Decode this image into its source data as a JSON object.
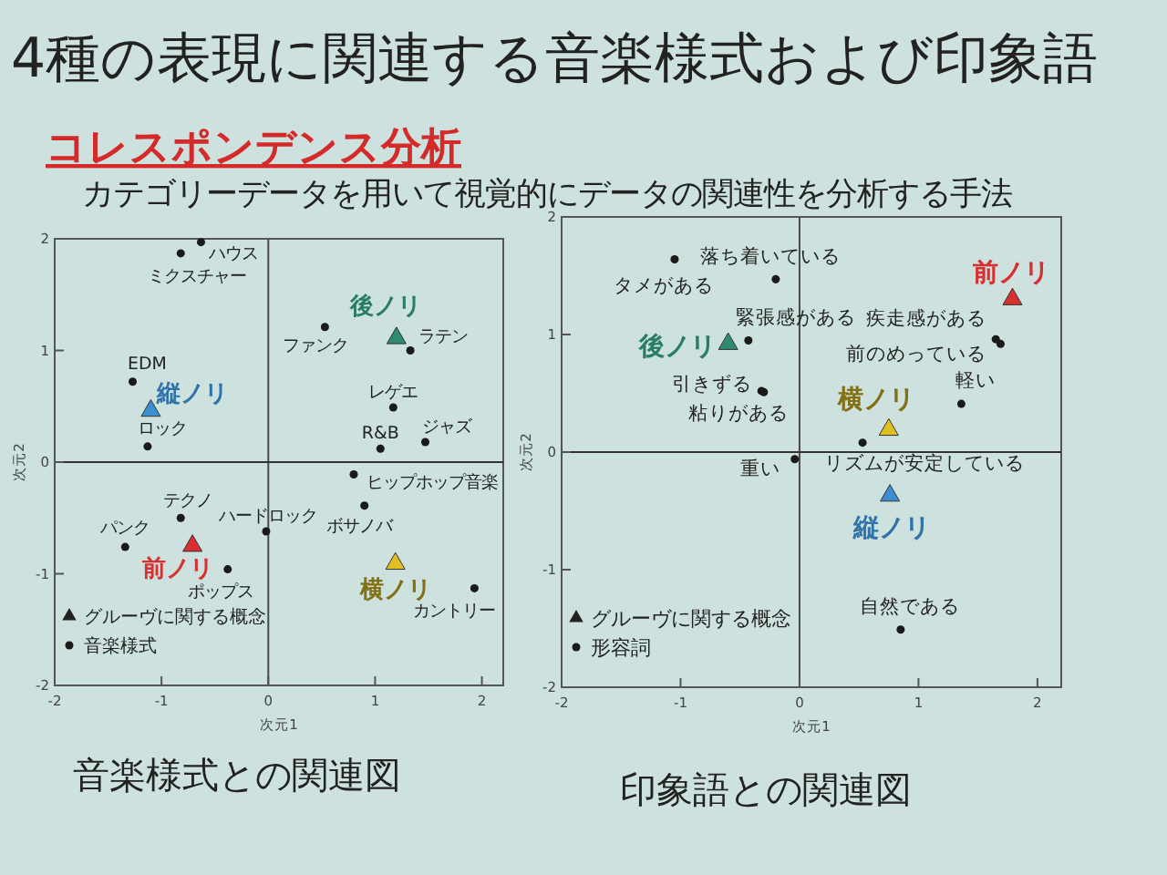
{
  "chart_data": [
    {
      "type": "scatter",
      "title": "4種の表現に関連する音楽様式および印象語",
      "subtitle": "コレスポンデンス分析",
      "xlabel": "次元1",
      "ylabel": "次元2",
      "xlim": [
        -2,
        2.2
      ],
      "ylim": [
        -2,
        2
      ],
      "xticks": [
        -2,
        -1,
        0,
        1,
        2
      ],
      "yticks": [
        -2,
        -1,
        0,
        1,
        2
      ],
      "legend": "bottom left",
      "ref_lines": [
        {
          "axis": "x",
          "value": 0
        },
        {
          "axis": "y",
          "value": 0
        }
      ],
      "series": [
        {
          "marker": "triangle",
          "colors": [
            "#2e8b6e",
            "#3b8fd0",
            "#d83030",
            "#e0c020"
          ],
          "x": [
            1.2,
            -1.1,
            -0.71,
            1.19
          ],
          "values": [
            1.11,
            0.46,
            -0.75,
            -0.91
          ]
        },
        {
          "name": "音楽様式",
          "marker": "circle",
          "color": "#1a1a1a",
          "x": [
            -0.63,
            -0.82,
            0.53,
            1.33,
            -1.27,
            -1.13,
            1.17,
            1.05,
            1.47,
            0.8,
            -0.82,
            -0.02,
            0.9,
            -1.34,
            -0.38,
            1.93
          ],
          "values": [
            1.97,
            1.87,
            1.21,
            1.0,
            0.72,
            0.14,
            0.49,
            0.12,
            0.18,
            -0.11,
            -0.5,
            -0.62,
            -0.39,
            -0.76,
            -0.96,
            -1.13
          ]
        }
      ],
      "annotations": [
        {
          "text": "後ノリ",
          "x": 1.2,
          "y": 1.11
        },
        {
          "text": "縦ノリ",
          "x": -1.1,
          "y": 0.46
        },
        {
          "text": "前ノリ",
          "x": -0.71,
          "y": -0.75
        },
        {
          "text": "横ノリ",
          "x": 1.19,
          "y": -0.91
        },
        {
          "text": "ハウス",
          "x": -0.63,
          "y": 1.97
        },
        {
          "text": "ミクスチャー",
          "x": -0.82,
          "y": 1.87
        },
        {
          "text": "ファンク",
          "x": 0.53,
          "y": 1.21
        },
        {
          "text": "ラテン",
          "x": 1.33,
          "y": 1.0
        },
        {
          "text": "EDM",
          "x": -1.27,
          "y": 0.72
        },
        {
          "text": "ロック",
          "x": -1.13,
          "y": 0.14
        },
        {
          "text": "レゲエ",
          "x": 1.17,
          "y": 0.49
        },
        {
          "text": "R&B",
          "x": 1.05,
          "y": 0.12
        },
        {
          "text": "ジャズ",
          "x": 1.47,
          "y": 0.18
        },
        {
          "text": "ヒップホップ音楽",
          "x": 0.8,
          "y": -0.11
        },
        {
          "text": "テクノ",
          "x": -0.82,
          "y": -0.5
        },
        {
          "text": "ハードロック",
          "x": -0.02,
          "y": -0.62
        },
        {
          "text": "ボサノバ",
          "x": 0.9,
          "y": -0.39
        },
        {
          "text": "パンク",
          "x": -1.34,
          "y": -0.76
        },
        {
          "text": "ポップス",
          "x": -0.38,
          "y": -0.96
        },
        {
          "text": "カントリー",
          "x": 1.93,
          "y": -1.13
        },
        "カテゴリーデータを用いて視覚的にデータの関連性を分析する手法",
        "グルーヴに関する概念",
        "音楽様式との関連図"
      ]
    },
    {
      "type": "scatter",
      "xlabel": "次元1",
      "ylabel": "次元2",
      "xlim": [
        -2,
        2.2
      ],
      "ylim": [
        -2,
        2
      ],
      "xticks": [
        -2,
        -1,
        0,
        1,
        2
      ],
      "yticks": [
        -2,
        -1,
        0,
        1,
        2
      ],
      "legend": "bottom left",
      "ref_lines": [
        {
          "axis": "x",
          "value": 0
        },
        {
          "axis": "y",
          "value": 0
        }
      ],
      "series": [
        {
          "marker": "triangle",
          "colors": [
            "#d83030",
            "#2e8b6e",
            "#e0c020",
            "#3b8fd0"
          ],
          "x": [
            1.79,
            -0.6,
            0.75,
            0.76
          ],
          "values": [
            1.3,
            0.92,
            0.19,
            -0.37
          ]
        },
        {
          "name": "形容詞",
          "marker": "circle",
          "color": "#1a1a1a",
          "x": [
            -1.05,
            -0.2,
            -0.43,
            1.65,
            1.69,
            -0.32,
            -0.3,
            1.36,
            0.53,
            -0.04,
            0.85
          ],
          "values": [
            1.64,
            1.47,
            0.95,
            0.96,
            0.92,
            0.52,
            0.51,
            0.41,
            0.08,
            -0.06,
            -1.51
          ]
        }
      ],
      "annotations": [
        {
          "text": "前ノリ",
          "x": 1.79,
          "y": 1.3
        },
        {
          "text": "後ノリ",
          "x": -0.6,
          "y": 0.92
        },
        {
          "text": "横ノリ",
          "x": 0.75,
          "y": 0.19
        },
        {
          "text": "縦ノリ",
          "x": 0.76,
          "y": -0.37
        },
        {
          "text": "タメがある",
          "x": -1.05,
          "y": 1.64
        },
        {
          "text": "落ち着いている",
          "x": -0.2,
          "y": 1.47
        },
        {
          "text": "緊張感がある",
          "x": -0.43,
          "y": 0.95
        },
        {
          "text": "疾走感がある",
          "x": 1.65,
          "y": 0.96
        },
        {
          "text": "前のめっている",
          "x": 1.69,
          "y": 0.92
        },
        {
          "text": "引きずる",
          "x": -0.32,
          "y": 0.52
        },
        {
          "text": "粘りがある",
          "x": -0.3,
          "y": 0.51
        },
        {
          "text": "軽い",
          "x": 1.36,
          "y": 0.41
        },
        {
          "text": "リズムが安定している",
          "x": 0.53,
          "y": 0.08
        },
        {
          "text": "重い",
          "x": -0.04,
          "y": -0.06
        },
        {
          "text": "自然である",
          "x": 0.85,
          "y": -1.51
        },
        "グルーヴに関する概念",
        "印象語との関連図"
      ]
    }
  ]
}
